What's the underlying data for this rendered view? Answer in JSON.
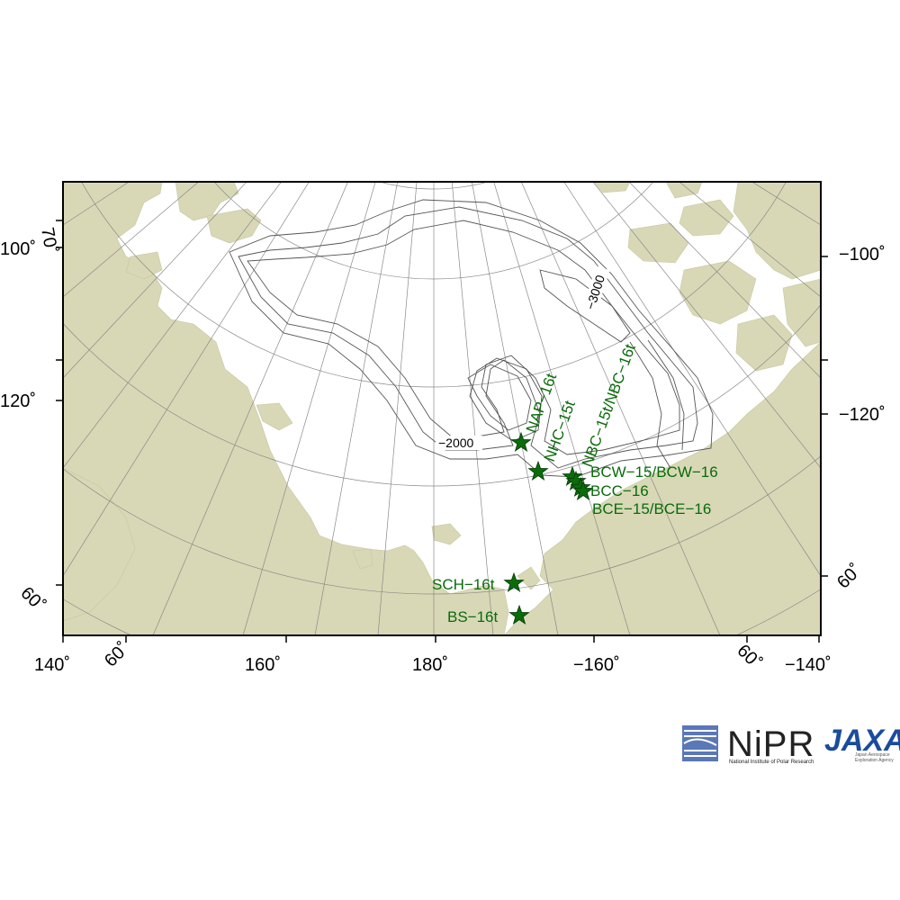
{
  "map": {
    "colors": {
      "land": "#d8d8b6",
      "ocean": "#ffffff",
      "contour": "#555555",
      "graticule": "#8a8a8a",
      "station": "#0a6b0a",
      "frame": "#000000"
    },
    "tick_labels": {
      "left_100": "100˚",
      "left_120": "120˚",
      "left_60": "60˚",
      "left_70": "70˚",
      "right_100": "−100˚",
      "right_120": "−120˚",
      "right_60": "60˚",
      "bottom_140": "140˚",
      "bottom_160": "160˚",
      "bottom_180": "180˚",
      "bottom_m160": "−160˚",
      "bottom_m140": "−140˚",
      "bottom_60_left": "60˚",
      "bottom_60_right": "60˚"
    },
    "contour_labels": {
      "c2000": "−2000",
      "c3000": "−3000"
    },
    "stations": [
      {
        "label": "NAP−16t",
        "symbol": "star"
      },
      {
        "label": "NHC−15t",
        "symbol": "star"
      },
      {
        "label": "NBC−15t/NBC−16t",
        "symbol": "star"
      },
      {
        "label": "BCW−15/BCW−16",
        "symbol": "star"
      },
      {
        "label": "BCC−16",
        "symbol": "star"
      },
      {
        "label": "BCE−15/BCE−16",
        "symbol": "star"
      },
      {
        "label": "SCH−16t",
        "symbol": "star"
      },
      {
        "label": "BS−16t",
        "symbol": "star"
      }
    ]
  },
  "logos": {
    "nipr": "NiPR",
    "nipr_sub": "National Institute of Polar Research",
    "jaxa": "JAXA",
    "jaxa_sub_1": "Japan Aerospace",
    "jaxa_sub_2": "Exploration Agency"
  }
}
